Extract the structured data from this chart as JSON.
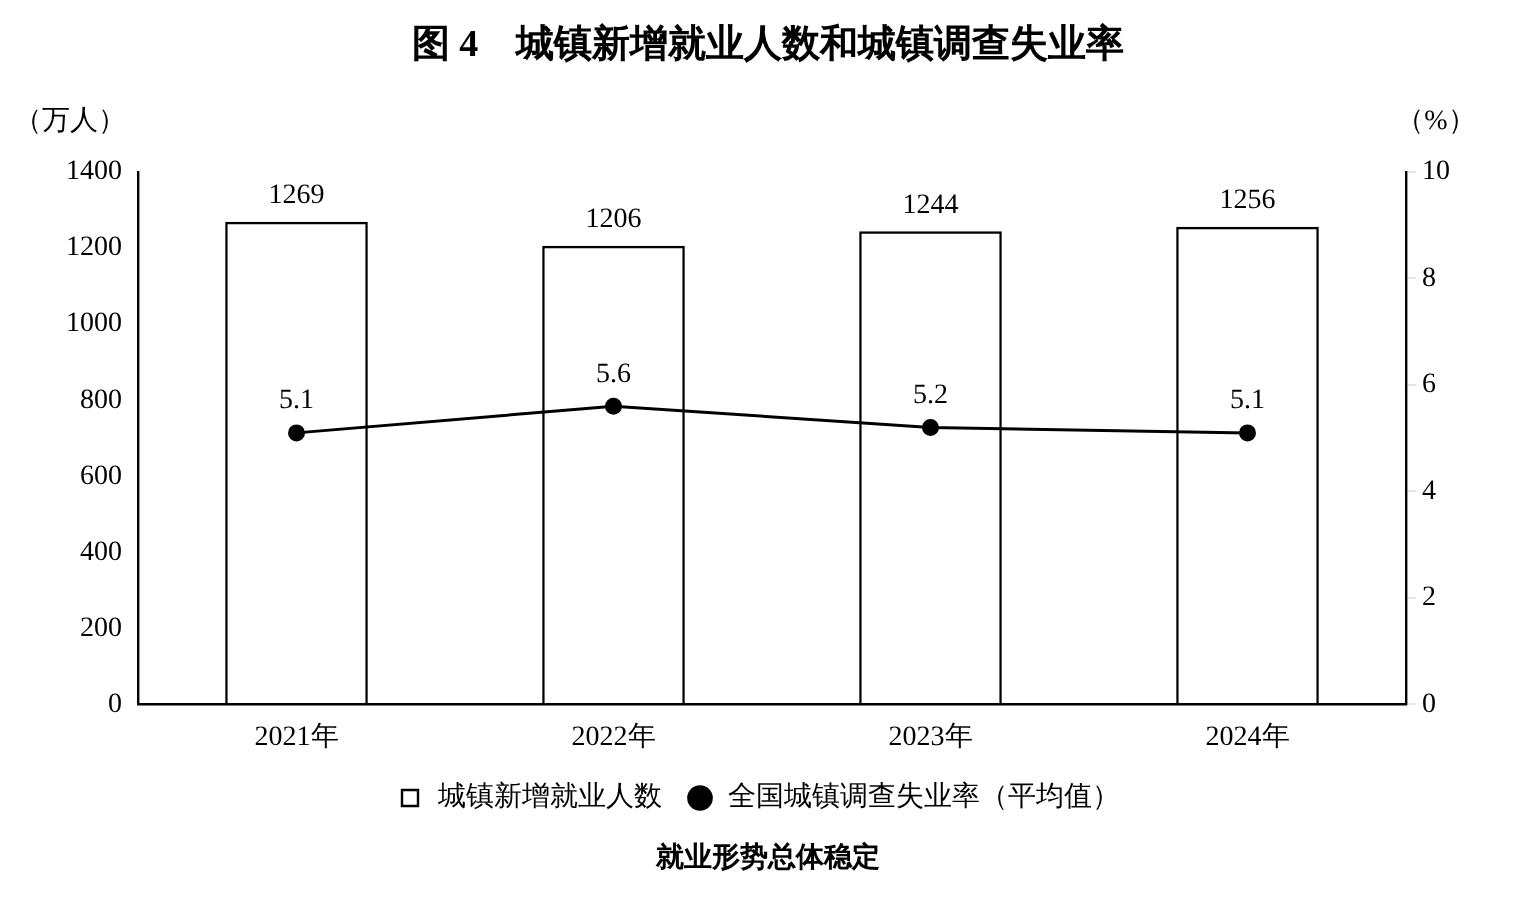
{
  "chart_data": {
    "type": "bar",
    "title": "图 4　城镇新增就业人数和城镇调查失业率",
    "ylabel": "（万人）",
    "y2label": "（%）",
    "categories": [
      "2021年",
      "2022年",
      "2023年",
      "2024年"
    ],
    "series": [
      {
        "name": "城镇新增就业人数",
        "color": "#000000",
        "values": [
          1269,
          1206,
          1244,
          1256
        ]
      },
      {
        "name": "全国城镇调查失业率（平均值）",
        "type": "line",
        "axis": "y2",
        "color": "#000000",
        "values": [
          5.1,
          5.6,
          5.2,
          5.1
        ]
      }
    ],
    "ylim": [
      0,
      1400
    ],
    "yticks": [
      0,
      200,
      400,
      600,
      800,
      1000,
      1200,
      1400
    ],
    "y2lim": [
      0,
      10
    ],
    "y2ticks": [
      0,
      2,
      4,
      6,
      8,
      10
    ],
    "grid": false,
    "legend": "bottom",
    "marker": "circle",
    "line_style": "solid",
    "data_labels": true,
    "annotations": [
      "就业形势总体稳定"
    ]
  }
}
